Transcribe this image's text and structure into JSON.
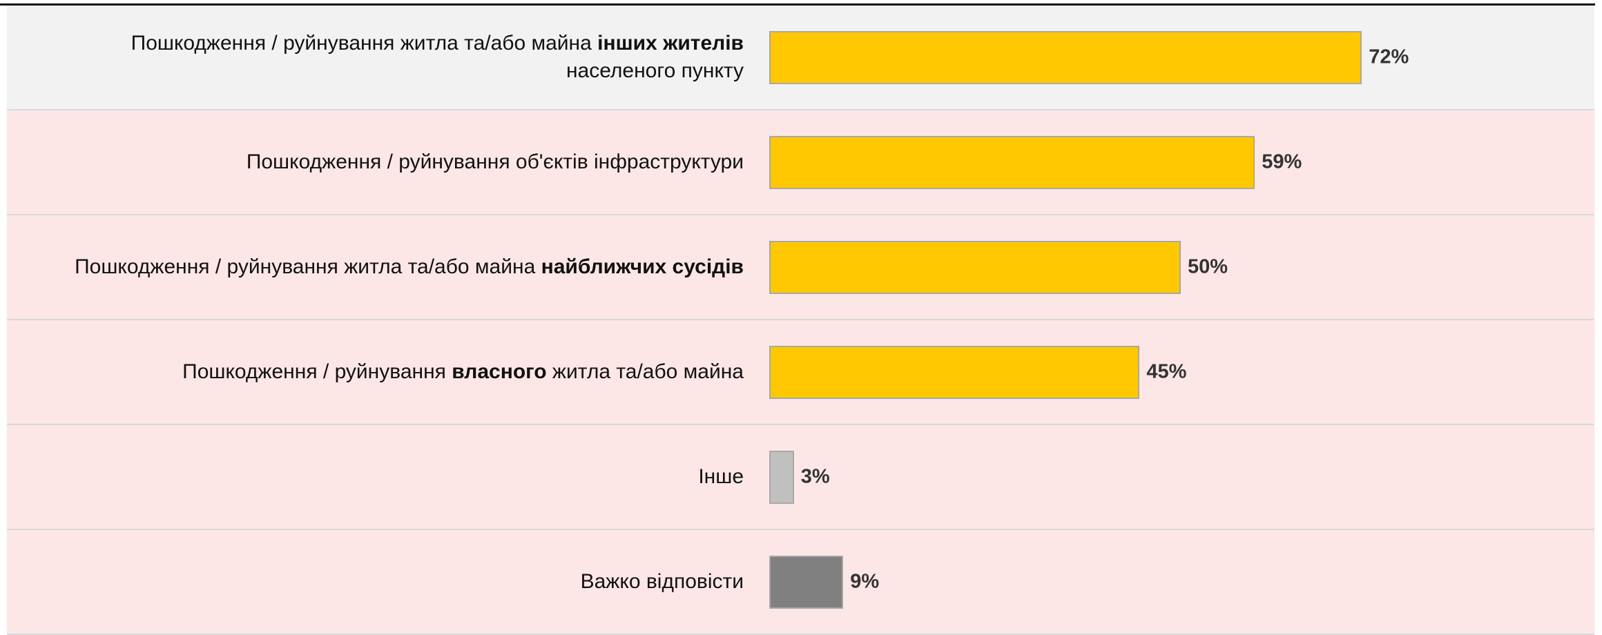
{
  "chart_data": {
    "type": "bar",
    "orientation": "horizontal",
    "categories": [
      [
        {
          "text": "Пошкодження / руйнування житла та/або майна ",
          "bold": false
        },
        {
          "text": "інших жителів",
          "bold": true
        },
        {
          "text": "\nнаселеного пункту",
          "bold": false
        }
      ],
      [
        {
          "text": "Пошкодження / руйнування об'єктів інфраструктури",
          "bold": false
        }
      ],
      [
        {
          "text": "Пошкодження / руйнування житла та/або майна ",
          "bold": false
        },
        {
          "text": "найближчих сусідів",
          "bold": true
        }
      ],
      [
        {
          "text": "Пошкодження / руйнування ",
          "bold": false
        },
        {
          "text": "власного",
          "bold": true
        },
        {
          "text": " житла та/або майна",
          "bold": false
        }
      ],
      [
        {
          "text": "Інше",
          "bold": false
        }
      ],
      [
        {
          "text": "Важко відповісти",
          "bold": false
        }
      ]
    ],
    "values": [
      72,
      59,
      50,
      45,
      3,
      9
    ],
    "value_labels": [
      "72%",
      "59%",
      "50%",
      "45%",
      "3%",
      "9%"
    ],
    "colors": [
      "#ffc800",
      "#ffc800",
      "#ffc800",
      "#ffc800",
      "#c0c0c0",
      "#808080"
    ],
    "row_colors": [
      "#f2f2f2",
      "#fde6e6",
      "#fde6e6",
      "#fde6e6",
      "#fde6e6",
      "#fde6e6"
    ]
  }
}
